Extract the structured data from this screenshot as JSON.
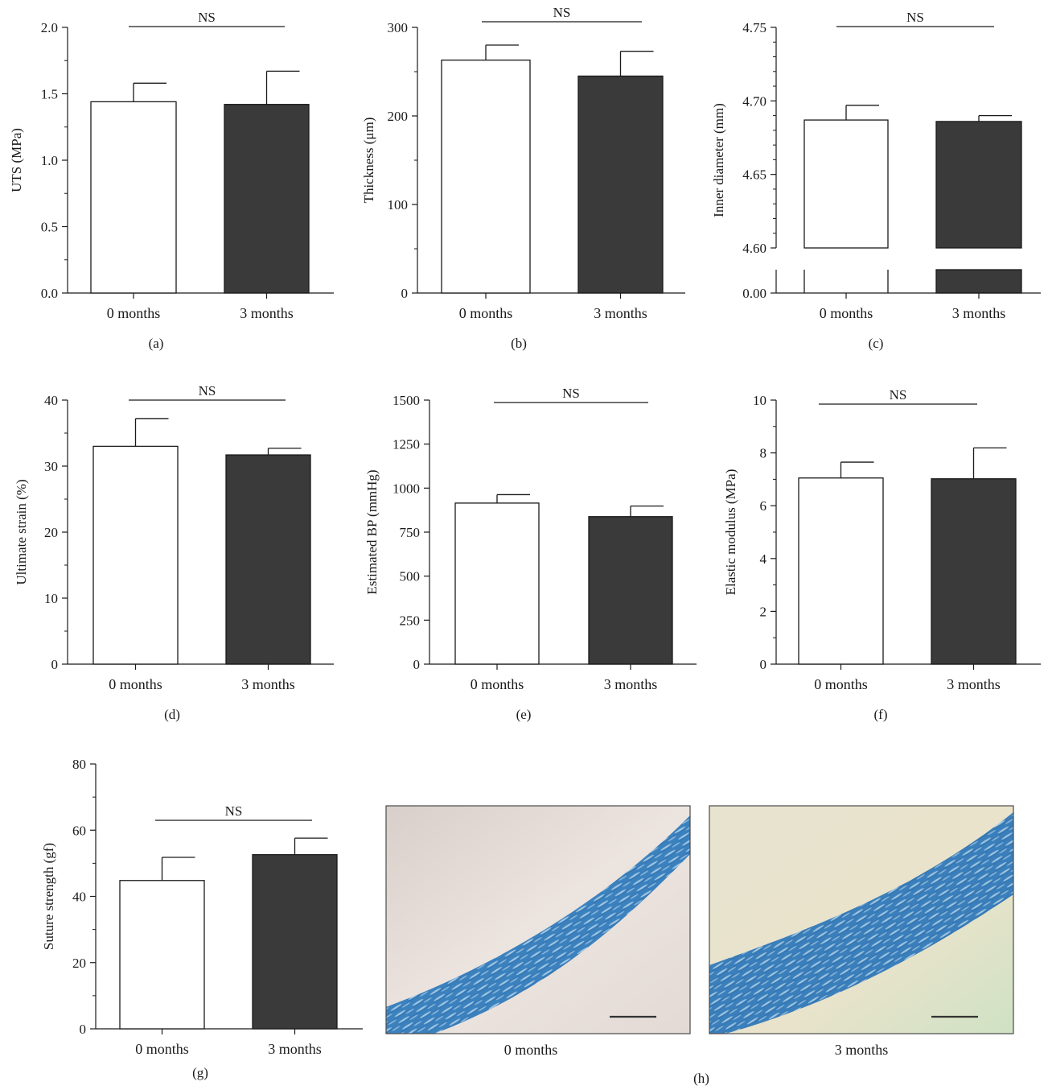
{
  "chart_data": [
    {
      "type": "bar",
      "panel_label": "(a)",
      "categories": [
        "0 months",
        "3 months"
      ],
      "values": [
        1.44,
        1.42
      ],
      "errors": [
        0.14,
        0.25
      ],
      "ylabel": "UTS (MPa)",
      "ylim": [
        0,
        2.0
      ],
      "yticks": [
        "0.0",
        "0.5",
        "1.0",
        "1.5",
        "2.0"
      ],
      "minor_ticks": 1,
      "significance": "NS",
      "bar_colors": [
        "#ffffff",
        "#3a3a3a"
      ]
    },
    {
      "type": "bar",
      "panel_label": "(b)",
      "categories": [
        "0 months",
        "3 months"
      ],
      "values": [
        263,
        245
      ],
      "errors": [
        17,
        28
      ],
      "ylabel": "Thickness (μm)",
      "ylim": [
        0,
        300
      ],
      "yticks": [
        "0",
        "100",
        "200",
        "300"
      ],
      "minor_ticks": 1,
      "significance": "NS",
      "bar_colors": [
        "#ffffff",
        "#3a3a3a"
      ]
    },
    {
      "type": "bar",
      "panel_label": "(c)",
      "axis_break": true,
      "categories": [
        "0 months",
        "3 months"
      ],
      "values": [
        4.687,
        4.686
      ],
      "errors": [
        0.01,
        0.004
      ],
      "ylabel": "Inner diameter (mm)",
      "ylim": [
        4.6,
        4.75
      ],
      "yticks": [
        "4.60",
        "4.65",
        "4.70",
        "4.75"
      ],
      "minor_ticks": 4,
      "break_lower_tick": "0.00",
      "significance": "NS",
      "bar_colors": [
        "#ffffff",
        "#3a3a3a"
      ]
    },
    {
      "type": "bar",
      "panel_label": "(d)",
      "categories": [
        "0 months",
        "3 months"
      ],
      "values": [
        33.0,
        31.7
      ],
      "errors": [
        4.2,
        1.0
      ],
      "ylabel": "Ultimate strain (%)",
      "ylim": [
        0,
        40
      ],
      "yticks": [
        "0",
        "10",
        "20",
        "30",
        "40"
      ],
      "minor_ticks": 1,
      "significance": "NS",
      "bar_colors": [
        "#ffffff",
        "#3a3a3a"
      ]
    },
    {
      "type": "bar",
      "panel_label": "(e)",
      "categories": [
        "0 months",
        "3 months"
      ],
      "values": [
        915,
        838
      ],
      "errors": [
        48,
        60
      ],
      "ylabel": "Estimated BP (mmHg)",
      "ylim": [
        0,
        1500
      ],
      "yticks": [
        "0",
        "250",
        "500",
        "750",
        "1000",
        "1250",
        "1500"
      ],
      "minor_ticks": 0,
      "significance": "NS",
      "bar_colors": [
        "#ffffff",
        "#3a3a3a"
      ]
    },
    {
      "type": "bar",
      "panel_label": "(f)",
      "categories": [
        "0 months",
        "3 months"
      ],
      "values": [
        7.05,
        7.02
      ],
      "errors": [
        0.6,
        1.17
      ],
      "ylabel": "Elastic modulus (MPa)",
      "ylim": [
        0,
        10
      ],
      "yticks": [
        "0",
        "2",
        "4",
        "6",
        "8",
        "10"
      ],
      "minor_ticks": 1,
      "significance": "NS",
      "bar_colors": [
        "#ffffff",
        "#3a3a3a"
      ]
    },
    {
      "type": "bar",
      "panel_label": "(g)",
      "categories": [
        "0 months",
        "3 months"
      ],
      "values": [
        44.8,
        52.6
      ],
      "errors": [
        7.0,
        5.0
      ],
      "ylabel": "Suture strength (gf)",
      "ylim": [
        0,
        80
      ],
      "yticks": [
        "0",
        "20",
        "40",
        "60",
        "80"
      ],
      "minor_ticks": 1,
      "significance": "NS",
      "bar_colors": [
        "#ffffff",
        "#3a3a3a"
      ]
    }
  ],
  "micrographs": {
    "panel_label": "(h)",
    "images": [
      {
        "caption": "0 months",
        "background": "#e7dcd6",
        "tissue": "#3f86c2"
      },
      {
        "caption": "3 months",
        "background": "#e6e3c8",
        "tissue": "#3b7fb9"
      }
    ]
  }
}
